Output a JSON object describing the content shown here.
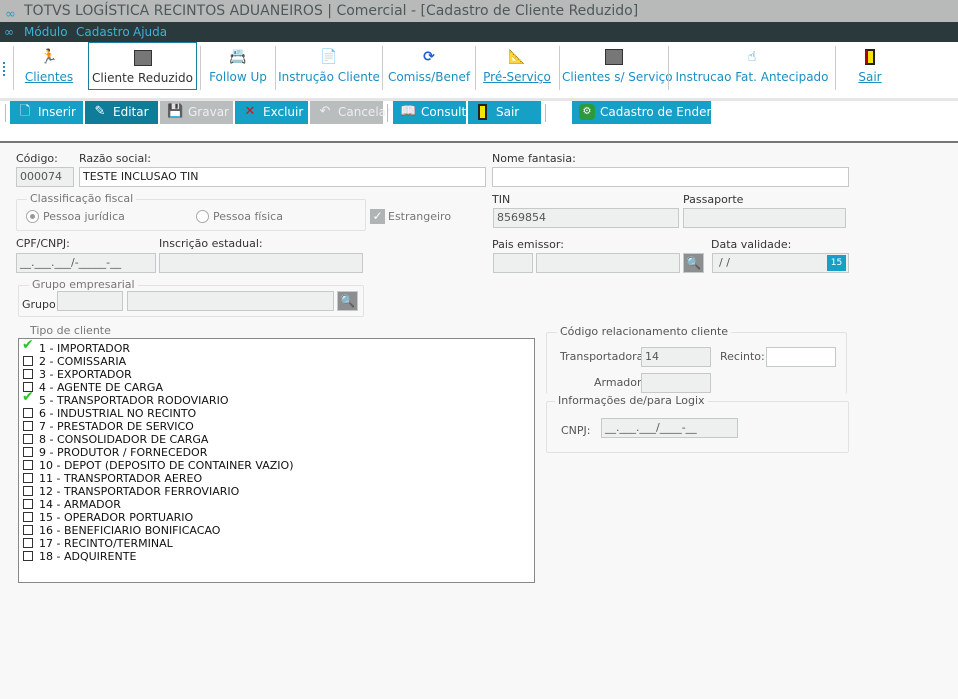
{
  "window": {
    "title": "TOTVS LOGÍSTICA RECINTOS ADUANEIROS | Comercial - [Cadastro de Cliente Reduzido]",
    "logo_icon": "totvs-logo-icon"
  },
  "menu": [
    "Módulo",
    "Cadastro",
    "Ajuda"
  ],
  "toolbar": [
    {
      "label": "Clientes",
      "icon": "running-man-icon"
    },
    {
      "label": "Cliente Reduzido",
      "icon": "window-edit-icon",
      "selected": true
    },
    {
      "label": "Follow Up",
      "icon": "follow-up-icon"
    },
    {
      "label": "Instrução Cliente",
      "icon": "document-instruction-icon"
    },
    {
      "label": "Comiss/Benef",
      "icon": "refresh-icon"
    },
    {
      "label": "Pré-Serviço",
      "icon": "pre-service-icon"
    },
    {
      "label": "Clientes s/ Serviço",
      "icon": "window-edit-icon"
    },
    {
      "label": "Instrucao Fat. Antecipado",
      "icon": "hand-pointer-icon"
    },
    {
      "label": "Sair",
      "icon": "exit-door-icon"
    }
  ],
  "actions": [
    {
      "label": "Inserir",
      "state": "enabled"
    },
    {
      "label": "Editar",
      "state": "active"
    },
    {
      "label": "Gravar",
      "state": "disabled"
    },
    {
      "label": "Excluir",
      "state": "enabled"
    },
    {
      "label": "Cancelar",
      "state": "disabled"
    },
    {
      "label": "Consultar",
      "state": "enabled"
    },
    {
      "label": "Sair",
      "state": "enabled"
    },
    {
      "label": "Cadastro de Endereço",
      "state": "enabled"
    }
  ],
  "form": {
    "codigo": {
      "label": "Código:",
      "value": "000074"
    },
    "razao": {
      "label": "Razão social:",
      "value": "TESTE INCLUSAO TIN"
    },
    "fantasia": {
      "label": "Nome fantasia:",
      "value": ""
    },
    "classificacao": {
      "title": "Classificação fiscal",
      "juridica": "Pessoa jurídica",
      "fisica": "Pessoa física",
      "selected": "Pessoa jurídica"
    },
    "estrangeiro": {
      "label": "Estrangeiro",
      "checked": true
    },
    "tin": {
      "label": "TIN",
      "value": "8569854"
    },
    "passaporte": {
      "label": "Passaporte",
      "value": ""
    },
    "cpf": {
      "label": "CPF/CNPJ:",
      "value": "__.___.___/-_____-__"
    },
    "inscricao": {
      "label": "Inscrição estadual:",
      "value": ""
    },
    "pais": {
      "label": "Pais emissor:"
    },
    "validade": {
      "label": "Data validade:",
      "value": " / /"
    },
    "grupo_emp": {
      "title": "Grupo empresarial",
      "label": "Grupo:"
    },
    "tipo": {
      "title": "Tipo de cliente",
      "items": [
        {
          "label": "1 - IMPORTADOR",
          "checked": true
        },
        {
          "label": "2 - COMISSARIA",
          "checked": false
        },
        {
          "label": "3 - EXPORTADOR",
          "checked": false
        },
        {
          "label": "4 - AGENTE DE CARGA",
          "checked": false
        },
        {
          "label": "5 - TRANSPORTADOR RODOVIARIO",
          "checked": true
        },
        {
          "label": "6 - INDUSTRIAL NO RECINTO",
          "checked": false
        },
        {
          "label": "7 - PRESTADOR DE SERVICO",
          "checked": false
        },
        {
          "label": "8 - CONSOLIDADOR DE CARGA",
          "checked": false
        },
        {
          "label": "9 - PRODUTOR / FORNECEDOR",
          "checked": false
        },
        {
          "label": "10 - DEPOT (DEPOSITO DE CONTAINER VAZIO)",
          "checked": false
        },
        {
          "label": "11 - TRANSPORTADOR AEREO",
          "checked": false
        },
        {
          "label": "12 - TRANSPORTADOR FERROVIARIO",
          "checked": false
        },
        {
          "label": "14 - ARMADOR",
          "checked": false
        },
        {
          "label": "15 - OPERADOR PORTUARIO",
          "checked": false
        },
        {
          "label": "16 - BENEFICIARIO BONIFICACAO",
          "checked": false
        },
        {
          "label": "17 - RECINTO/TERMINAL",
          "checked": false
        },
        {
          "label": "18 - ADQUIRENTE",
          "checked": false
        }
      ]
    },
    "relacionamento": {
      "title": "Código relacionamento cliente",
      "transportadora_label": "Transportadora:",
      "transportadora": "14",
      "recinto_label": "Recinto:",
      "recinto": "",
      "armador_label": "Armador:",
      "armador": ""
    },
    "logix": {
      "title": "Informações de/para Logix",
      "cnpj_label": "CNPJ:",
      "cnpj": "__.___.___/____-__"
    }
  },
  "colors": {
    "accent": "#16a0c5",
    "menubar": "#2a393c",
    "link": "#1c8fc2"
  }
}
